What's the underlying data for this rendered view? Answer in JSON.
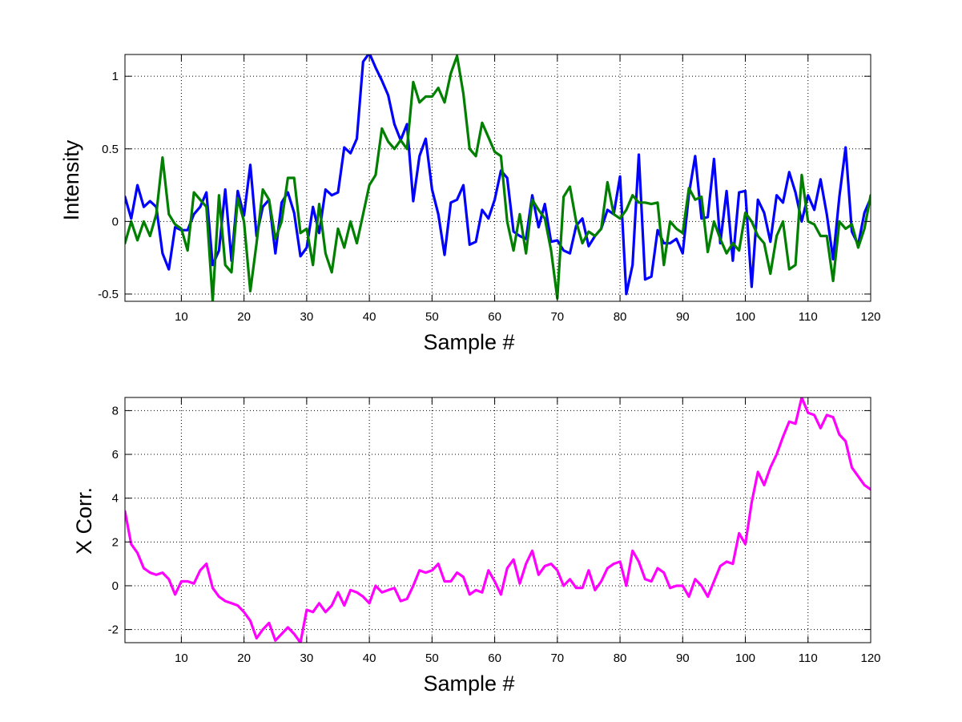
{
  "chart_data": [
    {
      "type": "line",
      "xlabel": "Sample #",
      "ylabel": "Intensity",
      "xlim": [
        1,
        120
      ],
      "ylim": [
        -0.55,
        1.15
      ],
      "xticks": [
        10,
        20,
        30,
        40,
        50,
        60,
        70,
        80,
        90,
        100,
        110,
        120
      ],
      "yticks": [
        -0.5,
        0,
        0.5,
        1
      ],
      "ytick_labels": [
        "-0.5",
        "0",
        "0.5",
        "1"
      ],
      "grid": true,
      "series": [
        {
          "color": "#0000ff",
          "values": [
            0.17,
            0.02,
            0.25,
            0.1,
            0.14,
            0.1,
            -0.22,
            -0.33,
            -0.04,
            -0.06,
            -0.06,
            0.05,
            0.1,
            0.2,
            -0.3,
            -0.2,
            0.22,
            -0.27,
            0.21,
            0.04,
            0.39,
            -0.1,
            0.1,
            0.15,
            -0.22,
            0.13,
            0.2,
            0.06,
            -0.24,
            -0.18,
            0.1,
            -0.08,
            0.22,
            0.18,
            0.2,
            0.51,
            0.47,
            0.57,
            1.1,
            1.16,
            1.06,
            0.97,
            0.87,
            0.67,
            0.56,
            0.67,
            0.14,
            0.45,
            0.57,
            0.22,
            0.05,
            -0.23,
            0.13,
            0.15,
            0.25,
            -0.16,
            -0.14,
            0.08,
            0.02,
            0.15,
            0.35,
            0.3,
            -0.07,
            -0.1,
            -0.12,
            0.18,
            -0.04,
            0.12,
            -0.14,
            -0.13,
            -0.2,
            -0.22,
            -0.03,
            0.02,
            -0.17,
            -0.1,
            -0.05,
            0.08,
            0.05,
            0.31,
            -0.5,
            -0.3,
            0.46,
            -0.4,
            -0.38,
            -0.06,
            -0.15,
            -0.15,
            -0.12,
            -0.22,
            0.19,
            0.45,
            0.02,
            0.03,
            0.43,
            -0.15,
            0.21,
            -0.27,
            0.2,
            0.21,
            -0.45,
            0.15,
            0.06,
            -0.14,
            0.18,
            0.13,
            0.34,
            0.2,
            0.0,
            0.18,
            0.08,
            0.29,
            0.05,
            -0.26,
            0.17,
            0.51,
            -0.07,
            -0.16,
            0.06,
            0.16
          ]
        },
        {
          "color": "#007f00",
          "values": [
            -0.15,
            0.0,
            -0.13,
            0.0,
            -0.1,
            0.05,
            0.44,
            0.05,
            -0.02,
            -0.05,
            -0.2,
            0.2,
            0.15,
            0.1,
            -0.55,
            0.18,
            -0.3,
            -0.35,
            0.16,
            0.0,
            -0.48,
            -0.15,
            0.22,
            0.15,
            -0.12,
            0.0,
            0.3,
            0.3,
            -0.08,
            -0.05,
            -0.3,
            0.12,
            -0.22,
            -0.35,
            -0.05,
            -0.18,
            0.0,
            -0.15,
            0.05,
            0.25,
            0.32,
            0.64,
            0.55,
            0.5,
            0.56,
            0.5,
            0.96,
            0.82,
            0.86,
            0.86,
            0.92,
            0.82,
            1.02,
            1.14,
            0.88,
            0.5,
            0.45,
            0.68,
            0.58,
            0.48,
            0.45,
            0.0,
            -0.2,
            0.05,
            -0.22,
            0.15,
            0.08,
            0.02,
            -0.2,
            -0.53,
            0.17,
            0.24,
            0.0,
            -0.15,
            -0.07,
            -0.1,
            -0.05,
            0.27,
            0.05,
            0.02,
            0.08,
            0.18,
            0.13,
            0.13,
            0.12,
            0.13,
            -0.3,
            0.0,
            -0.05,
            -0.08,
            0.23,
            0.15,
            0.17,
            -0.21,
            0.0,
            -0.12,
            -0.22,
            -0.15,
            -0.2,
            0.06,
            0.0,
            -0.1,
            -0.15,
            -0.36,
            -0.1,
            0.0,
            -0.33,
            -0.3,
            0.32,
            0.0,
            -0.02,
            -0.1,
            -0.1,
            -0.41,
            0.0,
            -0.05,
            -0.02,
            -0.18,
            -0.05,
            0.18
          ]
        }
      ]
    },
    {
      "type": "line",
      "xlabel": "Sample #",
      "ylabel": "X Corr.",
      "xlim": [
        1,
        120
      ],
      "ylim": [
        -2.6,
        8.6
      ],
      "xticks": [
        10,
        20,
        30,
        40,
        50,
        60,
        70,
        80,
        90,
        100,
        110,
        120
      ],
      "yticks": [
        -2,
        0,
        2,
        4,
        6,
        8
      ],
      "ytick_labels": [
        "-2",
        "0",
        "2",
        "4",
        "6",
        "8"
      ],
      "grid": true,
      "series": [
        {
          "color": "#ff00ff",
          "values": [
            3.4,
            1.9,
            1.5,
            0.8,
            0.6,
            0.5,
            0.6,
            0.3,
            -0.4,
            0.2,
            0.2,
            0.1,
            0.7,
            1.0,
            -0.1,
            -0.5,
            -0.7,
            -0.8,
            -0.9,
            -1.2,
            -1.6,
            -2.4,
            -2.0,
            -1.7,
            -2.5,
            -2.2,
            -1.9,
            -2.2,
            -2.6,
            -1.1,
            -1.2,
            -0.8,
            -1.2,
            -0.9,
            -0.3,
            -0.9,
            -0.2,
            -0.3,
            -0.5,
            -0.8,
            0.0,
            -0.3,
            -0.2,
            -0.1,
            -0.7,
            -0.6,
            0.0,
            0.7,
            0.6,
            0.7,
            1.0,
            0.2,
            0.2,
            0.6,
            0.4,
            -0.4,
            -0.2,
            -0.3,
            0.7,
            0.2,
            -0.4,
            0.8,
            1.2,
            0.1,
            1.0,
            1.6,
            0.5,
            0.9,
            1.0,
            0.7,
            0.0,
            0.3,
            -0.1,
            -0.1,
            0.7,
            -0.2,
            0.2,
            0.8,
            1.0,
            1.1,
            0.0,
            1.6,
            1.1,
            0.3,
            0.2,
            0.8,
            0.6,
            -0.1,
            0.0,
            0.0,
            -0.5,
            0.3,
            0.0,
            -0.5,
            0.2,
            0.9,
            1.1,
            1.0,
            2.4,
            1.9,
            3.8,
            5.2,
            4.6,
            5.4,
            6.0,
            6.8,
            7.5,
            7.4,
            8.6,
            7.9,
            7.8,
            7.2,
            7.8,
            7.7,
            6.9,
            6.6,
            5.4,
            5.0,
            4.6,
            4.4
          ]
        }
      ]
    }
  ]
}
